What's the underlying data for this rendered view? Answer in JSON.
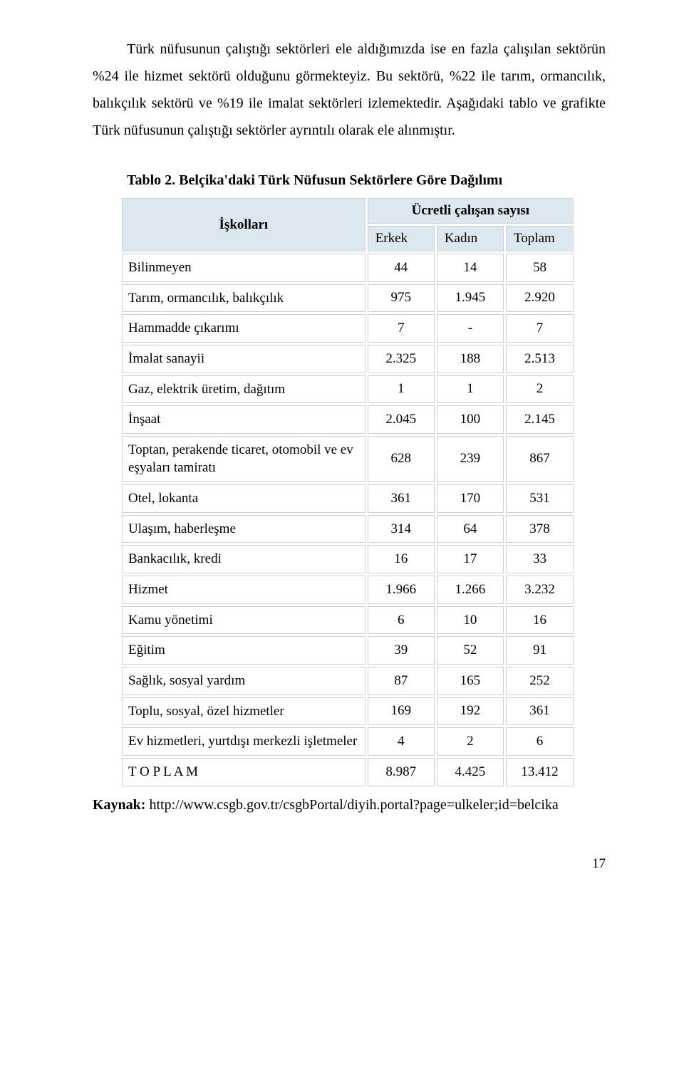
{
  "paragraph": "Türk nüfusunun çalıştığı sektörleri ele aldığımızda ise en fazla çalışılan sektörün %24 ile hizmet sektörü olduğunu görmekteyiz. Bu sektörü, %22 ile tarım, ormancılık, balıkçılık sektörü ve %19 ile imalat sektörleri izlemektedir. Aşağıdaki tablo ve grafikte Türk nüfusunun çalıştığı sektörler ayrıntılı olarak ele alınmıştır.",
  "table": {
    "title": "Tablo 2. Belçika'daki Türk Nüfusun Sektörlere Göre Dağılımı",
    "row_header": "İşkolları",
    "group_header": "Ücretli çalışan sayısı",
    "columns": [
      "Erkek",
      "Kadın",
      "Toplam"
    ],
    "header_bg": "#dce8ef",
    "cell_border": "#d0d0d0",
    "rows": [
      {
        "label": "Bilinmeyen",
        "values": [
          "44",
          "14",
          "58"
        ]
      },
      {
        "label": "Tarım, ormancılık, balıkçılık",
        "values": [
          "975",
          "1.945",
          "2.920"
        ]
      },
      {
        "label": "Hammadde çıkarımı",
        "values": [
          "7",
          "-",
          "7"
        ]
      },
      {
        "label": "İmalat sanayii",
        "values": [
          "2.325",
          "188",
          "2.513"
        ]
      },
      {
        "label": "Gaz, elektrik üretim, dağıtım",
        "values": [
          "1",
          "1",
          "2"
        ]
      },
      {
        "label": "İnşaat",
        "values": [
          "2.045",
          "100",
          "2.145"
        ]
      },
      {
        "label": "Toptan, perakende ticaret, otomobil ve ev eşyaları tamiratı",
        "values": [
          "628",
          "239",
          "867"
        ]
      },
      {
        "label": "Otel, lokanta",
        "values": [
          "361",
          "170",
          "531"
        ]
      },
      {
        "label": "Ulaşım, haberleşme",
        "values": [
          "314",
          "64",
          "378"
        ]
      },
      {
        "label": "Bankacılık, kredi",
        "values": [
          "16",
          "17",
          "33"
        ]
      },
      {
        "label": "Hizmet",
        "values": [
          "1.966",
          "1.266",
          "3.232"
        ]
      },
      {
        "label": "Kamu yönetimi",
        "values": [
          "6",
          "10",
          "16"
        ]
      },
      {
        "label": "Eğitim",
        "values": [
          "39",
          "52",
          "91"
        ]
      },
      {
        "label": "Sağlık, sosyal yardım",
        "values": [
          "87",
          "165",
          "252"
        ]
      },
      {
        "label": "Toplu, sosyal, özel hizmetler",
        "values": [
          "169",
          "192",
          "361"
        ]
      },
      {
        "label": "Ev hizmetleri, yurtdışı merkezli işletmeler",
        "values": [
          "4",
          "2",
          "6"
        ]
      },
      {
        "label": "T O P L A M",
        "values": [
          "8.987",
          "4.425",
          "13.412"
        ]
      }
    ]
  },
  "source": {
    "label": "Kaynak:",
    "text": " http://www.csgb.gov.tr/csgbPortal/diyih.portal?page=ulkeler;id=belcika"
  },
  "page_number": "17"
}
